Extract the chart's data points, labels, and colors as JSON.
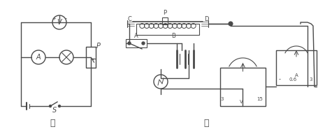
{
  "title_left": "甲",
  "title_right": "乙",
  "bg_color": "#ffffff",
  "line_color": "#4a4a4a",
  "fig_width": 4.56,
  "fig_height": 1.92,
  "dpi": 100,
  "voltmeter_label": "V",
  "ammeter_label": "A",
  "switch_label": "S",
  "rheostat_label": "P",
  "voltmeter_scale_left": "0.6",
  "voltmeter_scale_right": "3",
  "voltmeter_unit": "A",
  "voltmeter2_label": "V",
  "voltmeter2_scale1": "3",
  "voltmeter2_scale2": "15"
}
